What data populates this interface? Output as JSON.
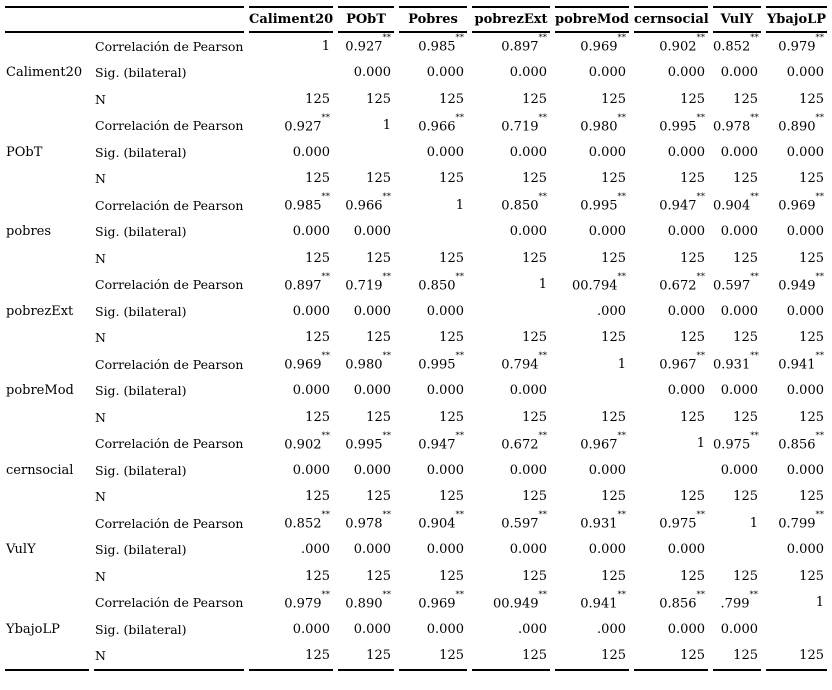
{
  "table": {
    "corner_label": "",
    "columns": [
      "Caliment20",
      "PObT",
      "Pobres",
      "pobrezExt",
      "pobreMod",
      "cernsocial",
      "VulY",
      "YbajoLP"
    ],
    "stat_labels": {
      "pearson": "Correlación de Pearson",
      "sig": "Sig. (bilateral)",
      "n": "N"
    },
    "significance_marker": "**",
    "rows": [
      {
        "label": "Caliment20",
        "pearson": [
          "1",
          "0.927**",
          "0.985**",
          "0.897**",
          "0.969**",
          "0.902**",
          "0.852**",
          "0.979**"
        ],
        "sig": [
          "",
          "0.000",
          "0.000",
          "0.000",
          "0.000",
          "0.000",
          "0.000",
          "0.000"
        ],
        "n": [
          "125",
          "125",
          "125",
          "125",
          "125",
          "125",
          "125",
          "125"
        ]
      },
      {
        "label": "PObT",
        "pearson": [
          "0.927**",
          "1",
          "0.966**",
          "0.719**",
          "0.980**",
          "0.995**",
          "0.978**",
          "0.890**"
        ],
        "sig": [
          "0.000",
          "",
          "0.000",
          "0.000",
          "0.000",
          "0.000",
          "0.000",
          "0.000"
        ],
        "n": [
          "125",
          "125",
          "125",
          "125",
          "125",
          "125",
          "125",
          "125"
        ]
      },
      {
        "label": "pobres",
        "pearson": [
          "0.985**",
          "0.966**",
          "1",
          "0.850**",
          "0.995**",
          "0.947**",
          "0.904**",
          "0.969**"
        ],
        "sig": [
          "0.000",
          "0.000",
          "",
          "0.000",
          "0.000",
          "0.000",
          "0.000",
          "0.000"
        ],
        "n": [
          "125",
          "125",
          "125",
          "125",
          "125",
          "125",
          "125",
          "125"
        ]
      },
      {
        "label": "pobrezExt",
        "pearson": [
          "0.897**",
          "0.719**",
          "0.850**",
          "1",
          "00.794**",
          "0.672**",
          "0.597**",
          "0.949**"
        ],
        "sig": [
          "0.000",
          "0.000",
          "0.000",
          "",
          ".000",
          "0.000",
          "0.000",
          "0.000"
        ],
        "n": [
          "125",
          "125",
          "125",
          "125",
          "125",
          "125",
          "125",
          "125"
        ]
      },
      {
        "label": "pobreMod",
        "pearson": [
          "0.969**",
          "0.980**",
          "0.995**",
          "0.794**",
          "1",
          "0.967**",
          "0.931**",
          "0.941**"
        ],
        "sig": [
          "0.000",
          "0.000",
          "0.000",
          "0.000",
          "",
          "0.000",
          "0.000",
          "0.000"
        ],
        "n": [
          "125",
          "125",
          "125",
          "125",
          "125",
          "125",
          "125",
          "125"
        ]
      },
      {
        "label": "cernsocial",
        "pearson": [
          "0.902**",
          "0.995**",
          "0.947**",
          "0.672**",
          "0.967**",
          "1",
          "0.975**",
          "0.856**"
        ],
        "sig": [
          "0.000",
          "0.000",
          "0.000",
          "0.000",
          "0.000",
          "",
          "0.000",
          "0.000"
        ],
        "n": [
          "125",
          "125",
          "125",
          "125",
          "125",
          "125",
          "125",
          "125"
        ]
      },
      {
        "label": "VulY",
        "pearson": [
          "0.852**",
          "0.978**",
          "0.904**",
          "0.597**",
          "0.931**",
          "0.975**",
          "1",
          "0.799**"
        ],
        "sig": [
          ".000",
          "0.000",
          "0.000",
          "0.000",
          "0.000",
          "0.000",
          "",
          "0.000"
        ],
        "n": [
          "125",
          "125",
          "125",
          "125",
          "125",
          "125",
          "125",
          "125"
        ]
      },
      {
        "label": "YbajoLP",
        "pearson": [
          "0.979**",
          "0.890**",
          "0.969**",
          "00.949**",
          "0.941**",
          "0.856**",
          ".799**",
          "1"
        ],
        "sig": [
          "0.000",
          "0.000",
          "0.000",
          ".000",
          ".000",
          "0.000",
          "0.000",
          ""
        ],
        "n": [
          "125",
          "125",
          "125",
          "125",
          "125",
          "125",
          "125",
          "125"
        ]
      }
    ]
  }
}
